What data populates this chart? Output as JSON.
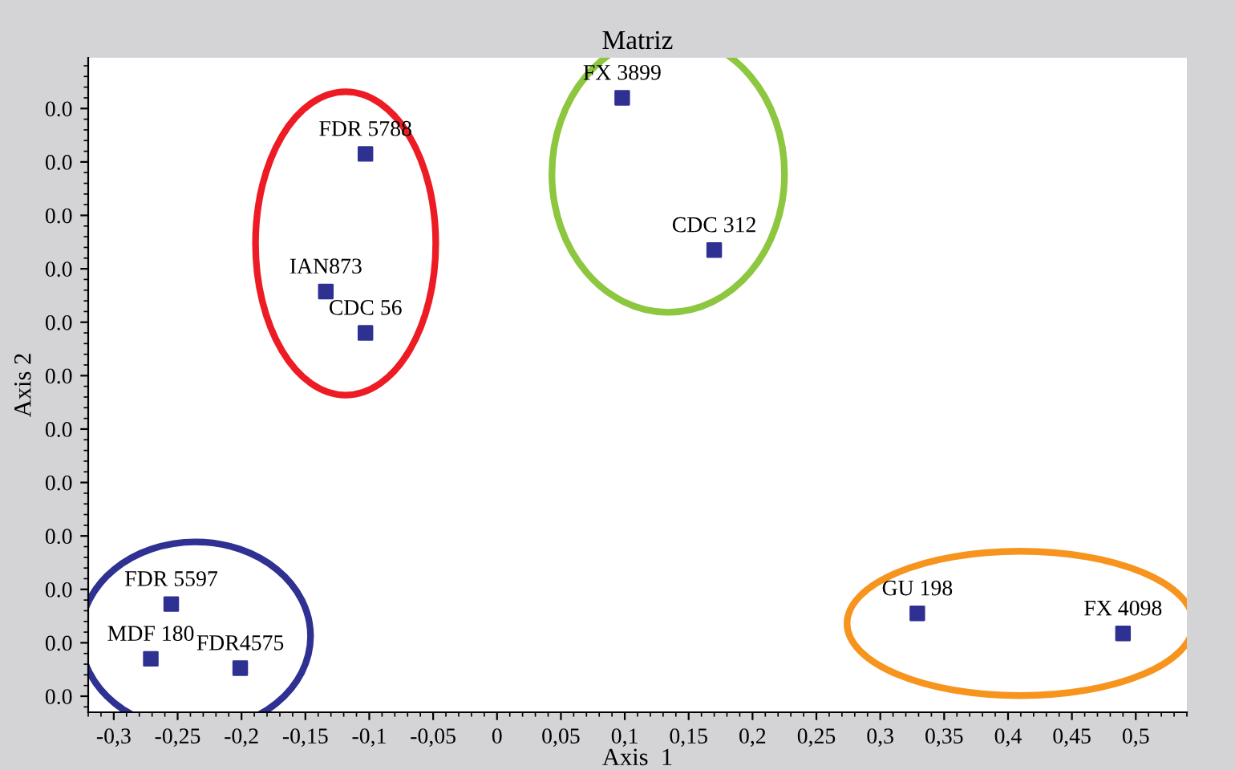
{
  "chart_data": {
    "type": "scatter",
    "title": "Matriz",
    "xlabel": "Axis  1",
    "ylabel": "Axis 2",
    "marker": "square",
    "grid": false,
    "legend": false,
    "series": [
      {
        "color": "#2e3192",
        "x": [
          -0.103,
          -0.134,
          -0.103
        ],
        "values": [
          0.0406,
          0.0303,
          0.0272
        ]
      },
      {
        "color": "#2e3192",
        "x": [
          0.098,
          0.17
        ],
        "values": [
          0.0448,
          0.0334
        ]
      },
      {
        "color": "#2e3192",
        "x": [
          -0.255,
          -0.271,
          -0.201
        ],
        "values": [
          0.0069,
          0.0028,
          0.0021
        ]
      },
      {
        "color": "#2e3192",
        "x": [
          0.329,
          0.49
        ],
        "values": [
          0.0062,
          0.0047
        ]
      }
    ],
    "annotations": [
      {
        "text": "FDR 5788",
        "x": -0.103,
        "y": 0.0406
      },
      {
        "text": "IAN873",
        "x": -0.134,
        "y": 0.0303
      },
      {
        "text": "CDC 56",
        "x": -0.103,
        "y": 0.0272
      },
      {
        "text": "FX 3899",
        "x": 0.098,
        "y": 0.0448
      },
      {
        "text": "CDC 312",
        "x": 0.17,
        "y": 0.0334
      },
      {
        "text": "FDR 5597",
        "x": -0.255,
        "y": 0.0069
      },
      {
        "text": "MDF 180",
        "x": -0.271,
        "y": 0.0028
      },
      {
        "text": "FDR4575",
        "x": -0.201,
        "y": 0.0021
      },
      {
        "text": "GU 198",
        "x": 0.329,
        "y": 0.0062
      },
      {
        "text": "FX 4098",
        "x": 0.49,
        "y": 0.0047
      }
    ],
    "xlim": [
      -0.32,
      0.54
    ],
    "xticks": [
      {
        "value": -0.3,
        "label": "-0,3"
      },
      {
        "value": -0.25,
        "label": "-0,25"
      },
      {
        "value": -0.2,
        "label": "-0,2"
      },
      {
        "value": -0.15,
        "label": "-0,15"
      },
      {
        "value": -0.1,
        "label": "-0,1"
      },
      {
        "value": -0.05,
        "label": "-0,05"
      },
      0,
      {
        "value": 0.05,
        "label": "0,05"
      },
      {
        "value": 0.1,
        "label": "0,1"
      },
      {
        "value": 0.15,
        "label": "0,15"
      },
      {
        "value": 0.2,
        "label": "0,2"
      },
      {
        "value": 0.25,
        "label": "0,25"
      },
      {
        "value": 0.3,
        "label": "0,3"
      },
      {
        "value": 0.35,
        "label": "0,35"
      },
      {
        "value": 0.4,
        "label": "0,4"
      },
      {
        "value": 0.45,
        "label": "0,45"
      },
      {
        "value": 0.5,
        "label": "0,5"
      }
    ],
    "ylim": [
      -0.0012,
      0.0478
    ],
    "yticks": [
      {
        "value": 0,
        "label": "0.0"
      },
      {
        "value": 0.004,
        "label": "0.0"
      },
      {
        "value": 0.008,
        "label": "0.0"
      },
      {
        "value": 0.012,
        "label": "0.0"
      },
      {
        "value": 0.016,
        "label": "0.0"
      },
      {
        "value": 0.02,
        "label": "0.0"
      },
      {
        "value": 0.024,
        "label": "0.0"
      },
      {
        "value": 0.028,
        "label": "0.0"
      },
      {
        "value": 0.032,
        "label": "0.0"
      },
      {
        "value": 0.036,
        "label": "0.0"
      },
      {
        "value": 0.04,
        "label": "0.0"
      },
      {
        "value": 0.044,
        "label": "0.0"
      }
    ]
  }
}
